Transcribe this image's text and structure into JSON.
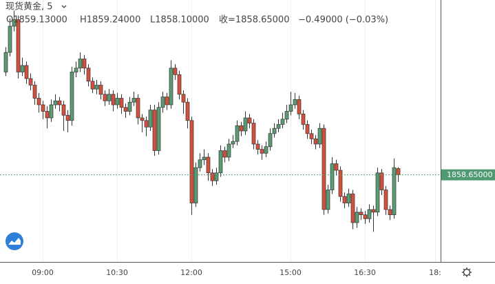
{
  "chart_data": {
    "type": "candlestick",
    "header": {
      "symbol": "现货黄金, 5",
      "open": "O1859.13000",
      "high": "H1859.24000",
      "low": "L1858.10000",
      "close": "收=1858.65000",
      "change": "−0.49000 (−0.03%)"
    },
    "categories": [
      null,
      null,
      null,
      null,
      null,
      null,
      null,
      null,
      null,
      "09:00",
      null,
      null,
      null,
      null,
      null,
      null,
      null,
      null,
      null,
      null,
      null,
      null,
      null,
      null,
      null,
      null,
      null,
      "10:30",
      null,
      null,
      null,
      null,
      null,
      null,
      null,
      null,
      null,
      null,
      null,
      null,
      null,
      null,
      null,
      null,
      null,
      "12:00",
      null,
      null,
      null,
      null,
      null,
      null,
      null,
      null,
      null,
      null,
      null,
      null,
      null,
      null,
      null,
      null,
      null,
      null,
      null,
      null,
      null,
      null,
      null,
      "15:00",
      null,
      null,
      null,
      null,
      null,
      null,
      null,
      null,
      null,
      null,
      null,
      null,
      null,
      null,
      null,
      null,
      null,
      "16:30",
      null,
      null,
      null,
      null,
      null,
      null,
      null,
      null,
      null,
      null,
      null,
      null,
      null,
      null,
      null,
      null,
      "18:"
    ],
    "open": [
      1866.5,
      1868.0,
      1870.0,
      1870.5,
      1866.5,
      1867.0,
      1866.0,
      1865.5,
      1864.5,
      1864.0,
      1863.5,
      1863.0,
      1864.0,
      1864.3,
      1864.0,
      1863.2,
      1862.8,
      1866.5,
      1866.8,
      1867.5,
      1866.8,
      1865.8,
      1865.2,
      1865.5,
      1864.8,
      1864.3,
      1864.8,
      1864.0,
      1864.5,
      1863.8,
      1863.5,
      1864.2,
      1864.5,
      1863.0,
      1862.8,
      1862.3,
      1863.6,
      1860.5,
      1863.8,
      1864.6,
      1864.0,
      1866.8,
      1866.3,
      1864.8,
      1864.2,
      1862.8,
      1856.5,
      1859.2,
      1859.8,
      1860.0,
      1858.8,
      1858.2,
      1858.8,
      1860.5,
      1860.0,
      1861.0,
      1861.2,
      1862.4,
      1862.0,
      1863.0,
      1862.6,
      1861.0,
      1860.6,
      1860.3,
      1860.8,
      1861.8,
      1862.2,
      1862.5,
      1862.9,
      1863.5,
      1864.0,
      1864.4,
      1863.3,
      1862.5,
      1861.8,
      1861.4,
      1861.0,
      1862.2,
      1856.0,
      1857.5,
      1859.5,
      1859.0,
      1857.0,
      1856.5,
      1857.2,
      1855.0,
      1855.8,
      1855.6,
      1855.3,
      1856.0,
      1855.8,
      1858.8,
      1857.5,
      1856.0,
      1855.6,
      1859.13,
      null,
      null,
      null,
      null,
      null,
      null,
      null,
      null,
      null
    ],
    "high": [
      1868.4,
      1870.6,
      1871.2,
      1870.8,
      1867.6,
      1867.3,
      1866.4,
      1865.8,
      1864.9,
      1864.3,
      1863.9,
      1864.4,
      1864.8,
      1864.6,
      1864.3,
      1863.6,
      1866.9,
      1867.3,
      1868.0,
      1867.8,
      1867.1,
      1866.1,
      1865.9,
      1865.8,
      1865.1,
      1865.2,
      1865.1,
      1864.9,
      1864.8,
      1864.1,
      1864.6,
      1865.0,
      1864.8,
      1863.3,
      1863.1,
      1864.0,
      1864.0,
      1864.2,
      1865.0,
      1864.9,
      1867.4,
      1867.1,
      1866.6,
      1865.1,
      1864.5,
      1863.1,
      1859.6,
      1860.3,
      1860.6,
      1860.3,
      1859.1,
      1859.2,
      1860.9,
      1860.8,
      1861.4,
      1861.7,
      1862.8,
      1862.7,
      1863.5,
      1863.3,
      1862.9,
      1861.3,
      1860.9,
      1861.2,
      1862.2,
      1862.6,
      1862.9,
      1863.4,
      1864.0,
      1865.0,
      1864.9,
      1864.7,
      1863.6,
      1862.8,
      1862.1,
      1861.7,
      1862.6,
      1862.5,
      1857.9,
      1860.0,
      1859.8,
      1859.3,
      1857.3,
      1857.6,
      1857.5,
      1856.2,
      1856.1,
      1855.9,
      1856.4,
      1856.3,
      1859.2,
      1859.1,
      1857.8,
      1856.3,
      1859.9,
      1859.24,
      null,
      null,
      null,
      null,
      null,
      null,
      null,
      null,
      null
    ],
    "low": [
      1866.2,
      1867.7,
      1869.6,
      1866.0,
      1866.2,
      1865.6,
      1865.1,
      1864.0,
      1863.4,
      1862.9,
      1862.2,
      1862.7,
      1863.7,
      1863.5,
      1862.0,
      1861.9,
      1862.4,
      1866.1,
      1866.5,
      1866.3,
      1865.4,
      1864.9,
      1864.8,
      1864.4,
      1863.9,
      1864.0,
      1863.5,
      1863.7,
      1863.3,
      1863.0,
      1863.2,
      1863.9,
      1862.5,
      1861.9,
      1861.6,
      1862.0,
      1860.1,
      1860.2,
      1863.4,
      1863.6,
      1863.7,
      1865.9,
      1864.4,
      1863.3,
      1862.2,
      1855.6,
      1856.2,
      1858.9,
      1859.4,
      1858.2,
      1857.8,
      1857.9,
      1858.5,
      1859.6,
      1859.7,
      1860.7,
      1860.9,
      1861.6,
      1861.7,
      1862.2,
      1860.6,
      1860.2,
      1859.8,
      1860.0,
      1860.5,
      1861.5,
      1861.9,
      1862.2,
      1862.6,
      1863.2,
      1863.7,
      1862.9,
      1862.1,
      1861.4,
      1861.0,
      1860.6,
      1860.7,
      1855.6,
      1855.7,
      1857.2,
      1858.6,
      1856.6,
      1856.1,
      1856.2,
      1854.5,
      1854.6,
      1855.2,
      1854.9,
      1855.0,
      1854.3,
      1855.5,
      1857.1,
      1855.6,
      1855.2,
      1855.3,
      1858.1,
      null,
      null,
      null,
      null,
      null,
      null,
      null,
      null,
      null
    ],
    "close": [
      1868.0,
      1870.0,
      1870.5,
      1866.5,
      1867.0,
      1866.0,
      1865.5,
      1864.5,
      1864.0,
      1863.5,
      1863.0,
      1864.0,
      1864.3,
      1864.0,
      1863.2,
      1862.8,
      1866.5,
      1866.8,
      1867.5,
      1866.8,
      1865.8,
      1865.2,
      1865.5,
      1864.8,
      1864.3,
      1864.8,
      1864.0,
      1864.5,
      1863.8,
      1863.5,
      1864.2,
      1864.5,
      1863.0,
      1862.8,
      1862.3,
      1863.6,
      1860.5,
      1863.8,
      1864.6,
      1864.0,
      1866.8,
      1866.3,
      1864.8,
      1864.2,
      1862.8,
      1856.5,
      1859.2,
      1859.8,
      1860.0,
      1858.8,
      1858.2,
      1858.8,
      1860.5,
      1860.0,
      1861.0,
      1861.2,
      1862.4,
      1862.0,
      1863.0,
      1862.6,
      1861.0,
      1860.6,
      1860.3,
      1860.8,
      1861.8,
      1862.2,
      1862.5,
      1862.9,
      1863.5,
      1864.0,
      1864.4,
      1863.3,
      1862.5,
      1861.8,
      1861.4,
      1861.0,
      1862.2,
      1856.0,
      1857.5,
      1859.5,
      1859.0,
      1857.0,
      1856.5,
      1857.2,
      1855.0,
      1855.8,
      1855.6,
      1855.3,
      1856.0,
      1855.8,
      1858.8,
      1857.5,
      1856.0,
      1855.6,
      1859.2,
      1858.65,
      null,
      null,
      null,
      null,
      null,
      null,
      null,
      null,
      null
    ],
    "up_color": "#5b9c72",
    "down_color": "#d4503c",
    "last_price": {
      "value": 1858.65,
      "label": "1858.65000"
    },
    "last_price_color": "#4f9a72",
    "ylim": [
      1852.0,
      1872.0
    ],
    "grid": true
  }
}
